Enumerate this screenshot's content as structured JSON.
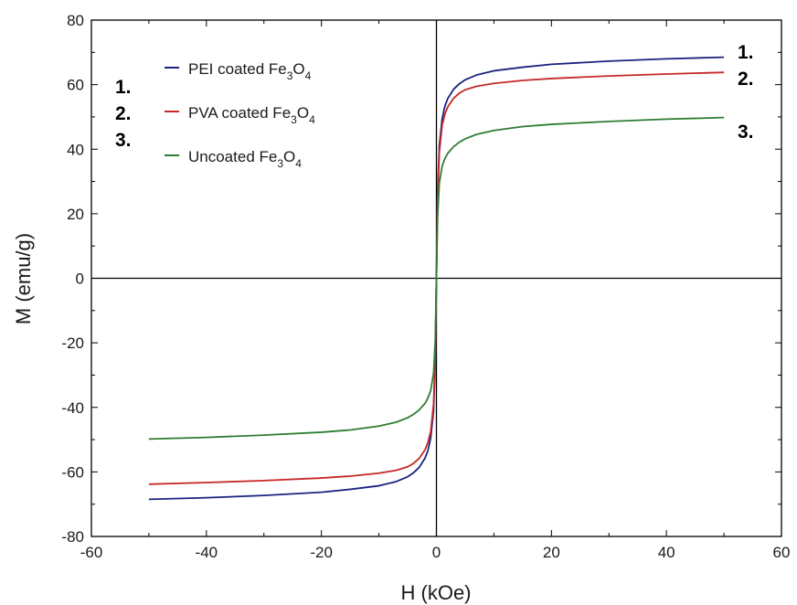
{
  "chart_data": {
    "type": "line",
    "title": "",
    "xlabel": "H (kOe)",
    "ylabel": "M (emu/g)",
    "xlim": [
      -60,
      60
    ],
    "ylim": [
      -80,
      80
    ],
    "x_ticks": [
      -60,
      -40,
      -20,
      0,
      20,
      40,
      60
    ],
    "y_ticks": [
      -80,
      -60,
      -40,
      -20,
      0,
      20,
      40,
      60,
      80
    ],
    "grid": false,
    "legend_position": "top-left",
    "series": [
      {
        "name": "PEI coated Fe3O4",
        "legend_base": "PEI coated Fe",
        "legend_sub1": "3",
        "legend_mid": "O",
        "legend_sub2": "4",
        "marker_label": "1.",
        "color": "#1a237e",
        "x": [
          -50,
          -40,
          -30,
          -20,
          -15,
          -10,
          -7,
          -5,
          -4,
          -3,
          -2,
          -1.5,
          -1,
          -0.5,
          -0.2,
          0,
          0.2,
          0.5,
          1,
          1.5,
          2,
          3,
          4,
          5,
          7,
          10,
          15,
          20,
          30,
          40,
          50
        ],
        "y": [
          -68.5,
          -68,
          -67.3,
          -66.3,
          -65.4,
          -64.3,
          -63,
          -61.5,
          -60.3,
          -58.6,
          -55.8,
          -53.5,
          -49.5,
          -41,
          -26,
          0,
          26,
          41,
          49.5,
          53.5,
          55.8,
          58.6,
          60.3,
          61.5,
          63,
          64.3,
          65.4,
          66.3,
          67.3,
          68,
          68.5
        ]
      },
      {
        "name": "PVA coated Fe3O4",
        "legend_base": "PVA coated Fe",
        "legend_sub1": "3",
        "legend_mid": "O",
        "legend_sub2": "4",
        "marker_label": "2.",
        "color": "#c62828",
        "x": [
          -50,
          -40,
          -30,
          -20,
          -15,
          -10,
          -7,
          -5,
          -4,
          -3,
          -2,
          -1.5,
          -1,
          -0.5,
          -0.2,
          0,
          0.2,
          0.5,
          1,
          1.5,
          2,
          3,
          4,
          5,
          7,
          10,
          15,
          20,
          30,
          40,
          50
        ],
        "y": [
          -63.8,
          -63.3,
          -62.7,
          -61.9,
          -61.3,
          -60.4,
          -59.5,
          -58.4,
          -57.4,
          -55.8,
          -53.2,
          -51,
          -47.5,
          -39,
          -24,
          0,
          24,
          39,
          47.5,
          51,
          53.2,
          55.8,
          57.4,
          58.4,
          59.5,
          60.4,
          61.3,
          61.9,
          62.7,
          63.3,
          63.8
        ]
      },
      {
        "name": "Uncoated Fe3O4",
        "legend_base": "Uncoated Fe",
        "legend_sub1": "3",
        "legend_mid": "O",
        "legend_sub2": "4",
        "marker_label": "3.",
        "color": "#2e7d32",
        "x": [
          -50,
          -40,
          -30,
          -20,
          -15,
          -10,
          -7,
          -5,
          -4,
          -3,
          -2,
          -1.5,
          -1,
          -0.5,
          -0.2,
          0,
          0.2,
          0.5,
          1,
          1.5,
          2,
          3,
          4,
          5,
          7,
          10,
          15,
          20,
          30,
          40,
          50
        ],
        "y": [
          -49.8,
          -49.3,
          -48.6,
          -47.7,
          -47,
          -45.8,
          -44.6,
          -43.2,
          -42.2,
          -40.8,
          -38.8,
          -37.2,
          -34.8,
          -29.5,
          -19,
          0,
          19,
          29.5,
          34.8,
          37.2,
          38.8,
          40.8,
          42.2,
          43.2,
          44.6,
          45.8,
          47,
          47.7,
          48.6,
          49.3,
          49.8
        ]
      }
    ]
  }
}
